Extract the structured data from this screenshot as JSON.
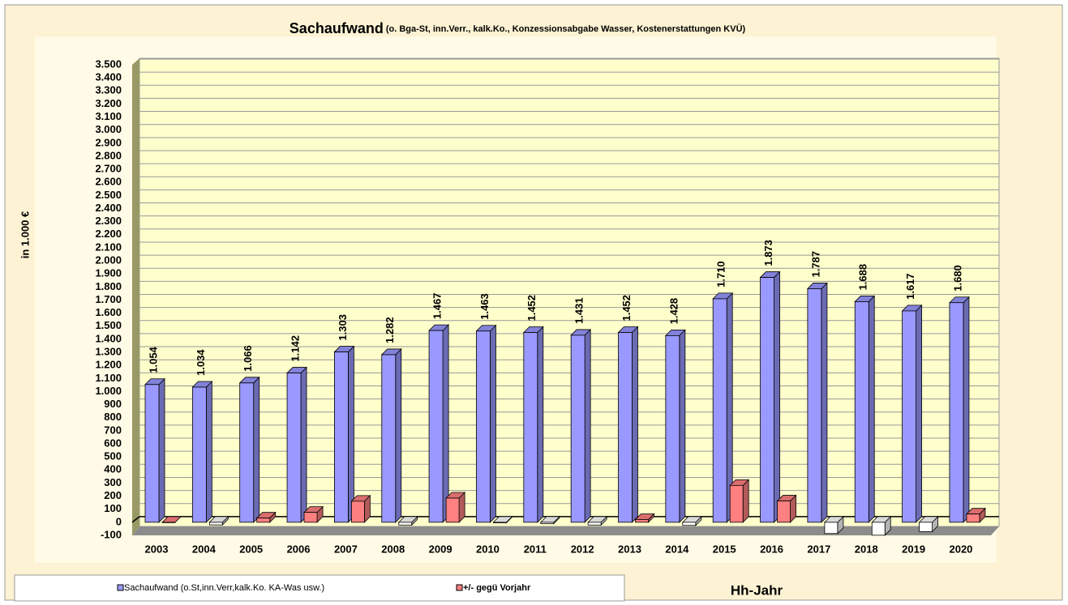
{
  "chart_data": {
    "type": "bar3d",
    "title": "Sachaufwand",
    "subtitle": "(o. Bga-St, inn.Verr., kalk.Ko., Konzessionsabgabe Wasser, Kostenerstattungen KVÜ)",
    "y_axis_label": "in 1.000 €",
    "x_axis_label": "Hh-Jahr",
    "categories": [
      "2003",
      "2004",
      "2005",
      "2006",
      "2007",
      "2008",
      "2009",
      "2010",
      "2011",
      "2012",
      "2013",
      "2014",
      "2015",
      "2016",
      "2017",
      "2018",
      "2019",
      "2020"
    ],
    "series": [
      {
        "name": "Sachaufwand (o.St,inn.Verr,kalk.Ko. KA-Was usw.)",
        "color": "#9999ff",
        "values": [
          1054,
          1034,
          1066,
          1142,
          1303,
          1282,
          1467,
          1463,
          1452,
          1431,
          1452,
          1428,
          1710,
          1873,
          1787,
          1688,
          1617,
          1680
        ],
        "value_labels": [
          "1.054",
          "1.034",
          "1.066",
          "1.142",
          "1.303",
          "1.282",
          "1.467",
          "1.463",
          "1.452",
          "1.431",
          "1.452",
          "1.428",
          "1.710",
          "1.873",
          "1.787",
          "1.688",
          "1.617",
          "1.680"
        ]
      },
      {
        "name": "+/- gegü Vorjahr",
        "color": "#ff8080",
        "negative_color": "#ffffff",
        "values": [
          0,
          -20,
          32,
          76,
          161,
          -21,
          185,
          -4,
          -11,
          -21,
          21,
          -24,
          282,
          163,
          -86,
          -99,
          -71,
          63
        ]
      }
    ],
    "ylim": [
      -100,
      3500
    ],
    "yticks": [
      {
        "value": -100,
        "label": "-100"
      },
      0,
      100,
      200,
      300,
      400,
      500,
      600,
      700,
      800,
      900,
      {
        "value": 1000,
        "label": "1.000"
      },
      {
        "value": 1100,
        "label": "1.100"
      },
      {
        "value": 1200,
        "label": "1.200"
      },
      {
        "value": 1300,
        "label": "1.300"
      },
      {
        "value": 1400,
        "label": "1.400"
      },
      {
        "value": 1500,
        "label": "1.500"
      },
      {
        "value": 1600,
        "label": "1.600"
      },
      {
        "value": 1700,
        "label": "1.700"
      },
      {
        "value": 1800,
        "label": "1.800"
      },
      {
        "value": 1900,
        "label": "1.900"
      },
      {
        "value": 2000,
        "label": "2.000"
      },
      {
        "value": 2100,
        "label": "2.100"
      },
      {
        "value": 2200,
        "label": "2.200"
      },
      {
        "value": 2300,
        "label": "2.300"
      },
      {
        "value": 2400,
        "label": "2.400"
      },
      {
        "value": 2500,
        "label": "2.500"
      },
      {
        "value": 2600,
        "label": "2.600"
      },
      {
        "value": 2700,
        "label": "2.700"
      },
      {
        "value": 2800,
        "label": "2.800"
      },
      {
        "value": 2900,
        "label": "2.900"
      },
      {
        "value": 3000,
        "label": "3.000"
      },
      {
        "value": 3100,
        "label": "3.100"
      },
      {
        "value": 3200,
        "label": "3.200"
      },
      {
        "value": 3300,
        "label": "3.300"
      },
      {
        "value": 3400,
        "label": "3.400"
      },
      {
        "value": 3500,
        "label": "3.500"
      }
    ],
    "grid": true
  }
}
